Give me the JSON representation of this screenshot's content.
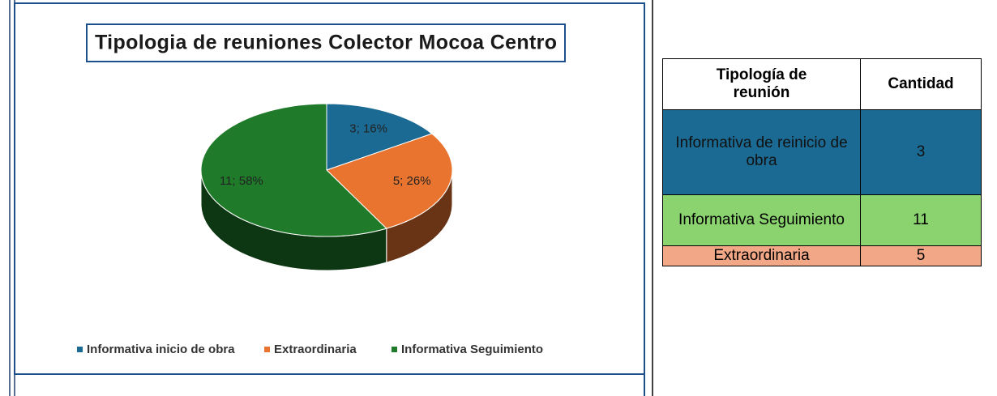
{
  "chart_data": {
    "type": "pie",
    "title": "Tipologia de reuniones Colector Mocoa Centro",
    "categories": [
      "Informativa inicio de obra",
      "Extraordinaria",
      "Informativa Seguimiento"
    ],
    "values": [
      3,
      5,
      11
    ],
    "value_labels": [
      "3; 16%",
      "5; 26%",
      "11; 58%"
    ],
    "colors": [
      "#1b6a93",
      "#e8742f",
      "#1f7a29"
    ],
    "legend": "bottom"
  },
  "table": {
    "header": [
      "Tipología de reunión",
      "Cantidad"
    ],
    "rows": [
      [
        "Informativa de reinicio de obra",
        3
      ],
      [
        "Informativa Seguimiento",
        11
      ],
      [
        "Extraordinaria",
        5
      ]
    ]
  }
}
